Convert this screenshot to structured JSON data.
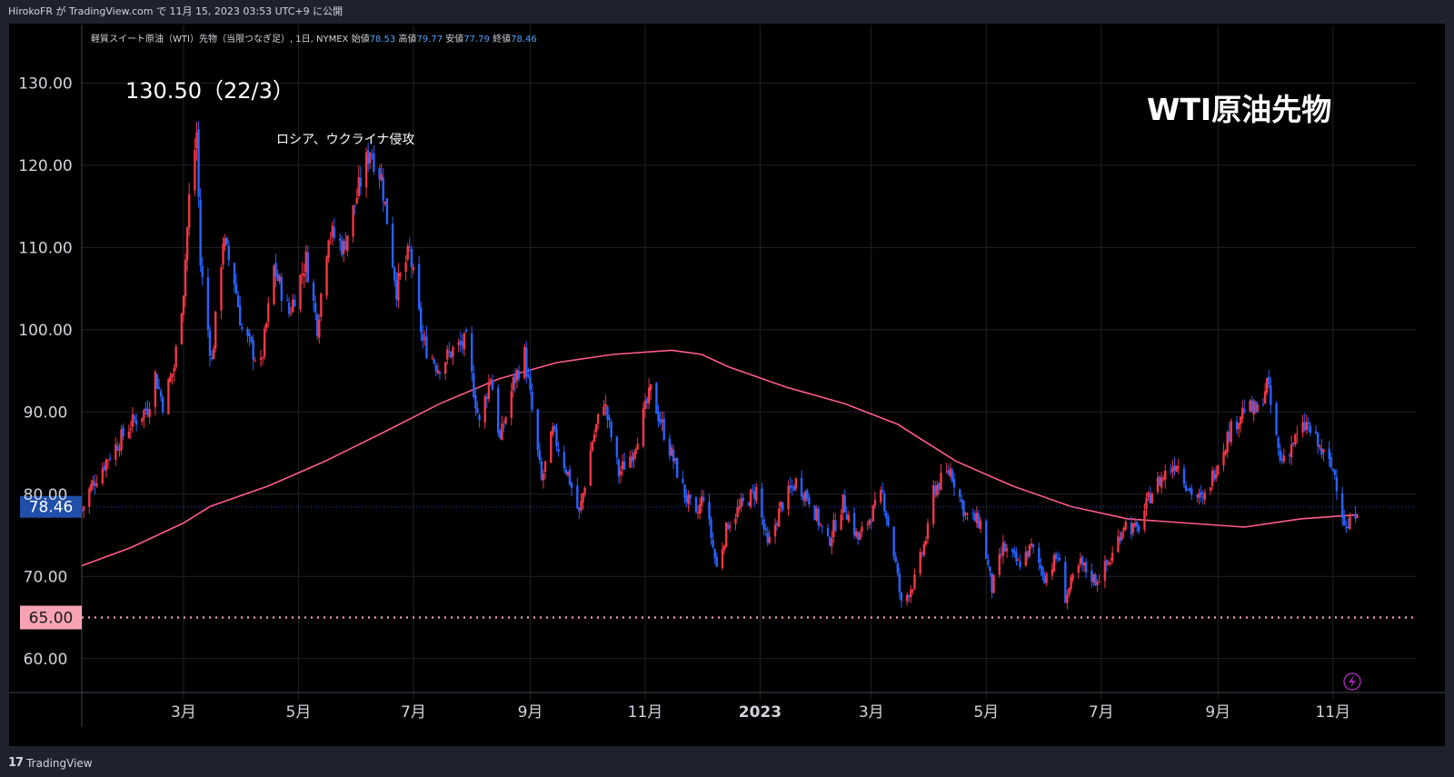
{
  "header": {
    "publish_info": "HirokoFR が TradingView.com で 11月 15, 2023 03:53 UTC+9 に公開"
  },
  "legend": {
    "symbol": "軽質スイート原油（WTI）先物（当限つなぎ足）, 1日, NYMEX",
    "open_label": "始値",
    "open_value": "78.53",
    "high_label": "高値",
    "high_value": "79.77",
    "low_label": "安値",
    "low_value": "77.79",
    "close_label": "終値",
    "close_value": "78.46"
  },
  "annotations": {
    "peak_label": "130.50（22/3）",
    "event_label": "ロシア、ウクライナ侵攻",
    "big_title": "WTI原油先物"
  },
  "footer": {
    "brand": "TradingView",
    "brand_mark": "17"
  },
  "colors": {
    "up": "#f23645",
    "down": "#2962ff",
    "ma": "#ff5c8a",
    "price_tag": "#1f4fa8",
    "level_tag": "#f7a3b4",
    "grid": "#1f2229",
    "alert": "#9c27b0"
  },
  "icons": {
    "alert": "lightning-bolt-icon",
    "logo": "tradingview-logo-icon"
  },
  "chart_data": {
    "type": "candlestick",
    "title": "",
    "xlabel": "",
    "ylabel": "",
    "ylim": [
      55,
      137
    ],
    "y_ticks": [
      "60.00",
      "70.00",
      "80.00",
      "90.00",
      "100.00",
      "110.00",
      "120.00",
      "130.00"
    ],
    "y_tick_values": [
      60,
      70,
      80,
      90,
      100,
      110,
      120,
      130
    ],
    "x_ticks": [
      "3月",
      "5月",
      "7月",
      "9月",
      "11月",
      "2023",
      "3月",
      "5月",
      "7月",
      "9月",
      "11月"
    ],
    "x_tick_dates": [
      "2022-03-01",
      "2022-05-01",
      "2022-07-01",
      "2022-09-01",
      "2022-11-01",
      "2023-01-01",
      "2023-03-01",
      "2023-05-01",
      "2023-07-01",
      "2023-09-01",
      "2023-11-01"
    ],
    "x_range": [
      "2022-01-06",
      "2023-12-15"
    ],
    "last_price": "78.46",
    "last_price_value": 78.46,
    "support_level": "65.00",
    "support_level_value": 65,
    "grid": true,
    "legend_position": "top-left",
    "price_path": [
      [
        "2022-01-06",
        78.0
      ],
      [
        "2022-01-10",
        80.5
      ],
      [
        "2022-01-20",
        84.5
      ],
      [
        "2022-02-01",
        88.5
      ],
      [
        "2022-02-10",
        90.5
      ],
      [
        "2022-02-14",
        94.5
      ],
      [
        "2022-02-18",
        91.0
      ],
      [
        "2022-02-24",
        95.5
      ],
      [
        "2022-03-01",
        105.0
      ],
      [
        "2022-03-04",
        116.0
      ],
      [
        "2022-03-08",
        124.0
      ],
      [
        "2022-03-10",
        108.0
      ],
      [
        "2022-03-16",
        96.0
      ],
      [
        "2022-03-22",
        111.0
      ],
      [
        "2022-03-28",
        106.0
      ],
      [
        "2022-04-01",
        100.0
      ],
      [
        "2022-04-11",
        95.5
      ],
      [
        "2022-04-18",
        107.5
      ],
      [
        "2022-04-26",
        102.0
      ],
      [
        "2022-05-05",
        108.5
      ],
      [
        "2022-05-11",
        100.5
      ],
      [
        "2022-05-17",
        112.0
      ],
      [
        "2022-05-25",
        110.0
      ],
      [
        "2022-06-03",
        118.0
      ],
      [
        "2022-06-08",
        122.0
      ],
      [
        "2022-06-14",
        118.5
      ],
      [
        "2022-06-22",
        105.0
      ],
      [
        "2022-06-29",
        109.5
      ],
      [
        "2022-07-06",
        98.5
      ],
      [
        "2022-07-14",
        95.5
      ],
      [
        "2022-07-22",
        97.5
      ],
      [
        "2022-07-29",
        98.5
      ],
      [
        "2022-08-05",
        88.5
      ],
      [
        "2022-08-11",
        94.5
      ],
      [
        "2022-08-16",
        86.5
      ],
      [
        "2022-08-23",
        93.5
      ],
      [
        "2022-08-29",
        97.0
      ],
      [
        "2022-09-07",
        81.5
      ],
      [
        "2022-09-13",
        87.5
      ],
      [
        "2022-09-21",
        82.5
      ],
      [
        "2022-09-27",
        77.5
      ],
      [
        "2022-10-04",
        86.5
      ],
      [
        "2022-10-10",
        91.5
      ],
      [
        "2022-10-18",
        82.5
      ],
      [
        "2022-10-25",
        85.0
      ],
      [
        "2022-11-04",
        92.5
      ],
      [
        "2022-11-14",
        85.5
      ],
      [
        "2022-11-22",
        80.0
      ],
      [
        "2022-11-28",
        77.0
      ],
      [
        "2022-12-02",
        80.0
      ],
      [
        "2022-12-09",
        71.0
      ],
      [
        "2022-12-15",
        76.5
      ],
      [
        "2022-12-22",
        78.5
      ],
      [
        "2022-12-30",
        80.5
      ],
      [
        "2023-01-05",
        73.5
      ],
      [
        "2023-01-12",
        78.5
      ],
      [
        "2023-01-20",
        81.5
      ],
      [
        "2023-01-27",
        79.5
      ],
      [
        "2023-02-06",
        74.0
      ],
      [
        "2023-02-14",
        79.0
      ],
      [
        "2023-02-22",
        74.5
      ],
      [
        "2023-03-01",
        77.5
      ],
      [
        "2023-03-07",
        80.0
      ],
      [
        "2023-03-14",
        71.5
      ],
      [
        "2023-03-17",
        66.5
      ],
      [
        "2023-03-24",
        69.5
      ],
      [
        "2023-03-31",
        75.5
      ],
      [
        "2023-04-03",
        80.5
      ],
      [
        "2023-04-12",
        83.0
      ],
      [
        "2023-04-20",
        77.5
      ],
      [
        "2023-04-28",
        76.5
      ],
      [
        "2023-05-04",
        68.5
      ],
      [
        "2023-05-10",
        73.5
      ],
      [
        "2023-05-18",
        71.5
      ],
      [
        "2023-05-25",
        73.5
      ],
      [
        "2023-06-01",
        70.0
      ],
      [
        "2023-06-08",
        72.5
      ],
      [
        "2023-06-12",
        67.5
      ],
      [
        "2023-06-20",
        71.5
      ],
      [
        "2023-06-28",
        69.5
      ],
      [
        "2023-07-06",
        72.0
      ],
      [
        "2023-07-13",
        76.5
      ],
      [
        "2023-07-20",
        75.5
      ],
      [
        "2023-07-28",
        80.5
      ],
      [
        "2023-08-04",
        82.5
      ],
      [
        "2023-08-10",
        84.0
      ],
      [
        "2023-08-17",
        80.5
      ],
      [
        "2023-08-24",
        79.0
      ],
      [
        "2023-08-31",
        83.5
      ],
      [
        "2023-09-07",
        87.5
      ],
      [
        "2023-09-15",
        90.5
      ],
      [
        "2023-09-22",
        90.0
      ],
      [
        "2023-09-27",
        93.5
      ],
      [
        "2023-10-04",
        84.0
      ],
      [
        "2023-10-10",
        86.0
      ],
      [
        "2023-10-18",
        88.5
      ],
      [
        "2023-10-25",
        85.5
      ],
      [
        "2023-11-02",
        82.5
      ],
      [
        "2023-11-08",
        75.5
      ],
      [
        "2023-11-14",
        78.46
      ]
    ],
    "moving_average": {
      "points": [
        [
          "2022-01-06",
          71.3
        ],
        [
          "2022-02-01",
          73.5
        ],
        [
          "2022-03-01",
          76.5
        ],
        [
          "2022-03-15",
          78.5
        ],
        [
          "2022-04-15",
          81.0
        ],
        [
          "2022-05-15",
          84.0
        ],
        [
          "2022-06-15",
          87.5
        ],
        [
          "2022-07-15",
          91.0
        ],
        [
          "2022-08-15",
          94.0
        ],
        [
          "2022-09-15",
          96.0
        ],
        [
          "2022-10-15",
          97.0
        ],
        [
          "2022-11-15",
          97.5
        ],
        [
          "2022-12-01",
          97.0
        ],
        [
          "2022-12-15",
          95.5
        ],
        [
          "2023-01-15",
          93.0
        ],
        [
          "2023-02-15",
          91.0
        ],
        [
          "2023-03-15",
          88.5
        ],
        [
          "2023-04-15",
          84.0
        ],
        [
          "2023-05-15",
          81.0
        ],
        [
          "2023-06-15",
          78.5
        ],
        [
          "2023-07-15",
          77.0
        ],
        [
          "2023-08-15",
          76.5
        ],
        [
          "2023-09-15",
          76.0
        ],
        [
          "2023-10-15",
          77.0
        ],
        [
          "2023-11-14",
          77.5
        ]
      ]
    }
  }
}
